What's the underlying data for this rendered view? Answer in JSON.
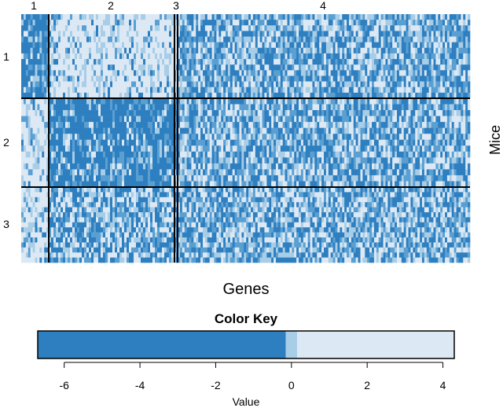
{
  "chart_data": [
    {
      "type": "heatmap",
      "xlabel": "Genes",
      "ylabel": "Mice",
      "column_blocks": [
        "1",
        "2",
        "3",
        "4"
      ],
      "row_blocks": [
        "1",
        "2",
        "3"
      ],
      "columns_per_block": [
        12,
        54,
        1,
        128
      ],
      "rows_per_block": [
        15,
        15,
        15
      ],
      "block_pattern": [
        [
          "dark",
          "light",
          "light",
          "mixed"
        ],
        [
          "light",
          "dark",
          "dark",
          "mixed"
        ],
        [
          "light",
          "mixed",
          "dark",
          "mixed"
        ]
      ],
      "colors": {
        "dark": "#2e7fc0",
        "mid": "#5a9fd2",
        "light_mid": "#a8cde6",
        "light": "#dce9f5",
        "grid": "#000000"
      }
    },
    {
      "type": "color_key",
      "title": "Color Key",
      "xlabel": "Value",
      "xlim": [
        -6.7,
        4.3
      ],
      "ticks": [
        "-6",
        "-4",
        "-2",
        "0",
        "2",
        "4"
      ],
      "tick_values": [
        -6,
        -4,
        -2,
        0,
        2,
        4
      ],
      "bands": [
        {
          "from": -6.7,
          "to": -0.15,
          "color": "#2e7fc0"
        },
        {
          "from": -0.15,
          "to": 0.15,
          "color": "#a8cde6"
        },
        {
          "from": 0.15,
          "to": 4.3,
          "color": "#dce9f5"
        }
      ]
    }
  ]
}
